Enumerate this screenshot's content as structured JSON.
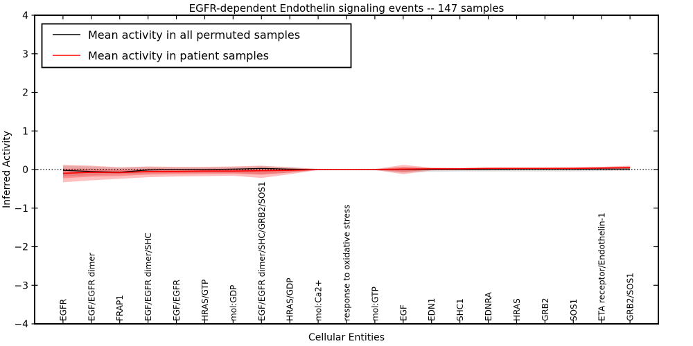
{
  "chart_data": {
    "type": "line",
    "title": "EGFR-dependent Endothelin signaling events -- 147 samples",
    "xlabel": "Cellular Entities",
    "ylabel": "Inferred Activity",
    "ylim": [
      -4,
      4
    ],
    "yticks": [
      4,
      3,
      2,
      1,
      0,
      -1,
      -2,
      -3,
      -4
    ],
    "grid": false,
    "legend_position": "upper left",
    "background_color": "#ffffff",
    "axis_color": "#000000",
    "zero_line": {
      "y": 0,
      "style": "dotted",
      "color": "#000000"
    },
    "categories": [
      "EGFR",
      "EGF/EGFR dimer",
      "FRAP1",
      "EGF/EGFR dimer/SHC",
      "EGF/EGFR",
      "HRAS/GTP",
      "mol:GDP",
      "EGF/EGFR dimer/SHC/GRB2/SOS1",
      "HRAS/GDP",
      "mol:Ca2+",
      "response to oxidative stress",
      "mol:GTP",
      "EGF",
      "EDN1",
      "SHC1",
      "EDNRA",
      "HRAS",
      "GRB2",
      "SOS1",
      "ETA receptor/Endothelin-1",
      "GRB2/SOS1"
    ],
    "series": [
      {
        "name": "Mean activity in all permuted samples",
        "color": "#000000",
        "line_width": 1.2,
        "band_color": "rgba(0,0,0,0.12)",
        "values": [
          -0.02,
          -0.05,
          -0.07,
          -0.01,
          0.0,
          0.0,
          0.01,
          0.03,
          0.01,
          0.0,
          0.0,
          0.0,
          0.0,
          0.0,
          0.0,
          0.0,
          0.01,
          0.01,
          0.01,
          0.01,
          0.01
        ],
        "band_upper": [
          0.1,
          0.08,
          0.05,
          0.07,
          0.06,
          0.06,
          0.07,
          0.09,
          0.06,
          0.02,
          0.01,
          0.02,
          0.06,
          0.04,
          0.04,
          0.04,
          0.04,
          0.04,
          0.04,
          0.04,
          0.05
        ],
        "band_lower": [
          -0.18,
          -0.15,
          -0.12,
          -0.1,
          -0.09,
          -0.09,
          -0.09,
          -0.12,
          -0.08,
          -0.02,
          -0.01,
          -0.02,
          -0.08,
          -0.06,
          -0.05,
          -0.05,
          -0.05,
          -0.05,
          -0.05,
          -0.04,
          -0.03
        ]
      },
      {
        "name": "Mean activity in patient samples",
        "color": "#ff0000",
        "line_width": 1.6,
        "band_color": "rgba(255,0,0,0.25)",
        "inner_band_scale": 0.55,
        "values": [
          -0.1,
          -0.07,
          -0.08,
          -0.05,
          -0.05,
          -0.04,
          -0.04,
          -0.03,
          -0.02,
          0.0,
          0.0,
          0.0,
          0.01,
          0.02,
          0.02,
          0.03,
          0.03,
          0.03,
          0.03,
          0.04,
          0.05
        ],
        "band_upper": [
          0.12,
          0.1,
          0.06,
          0.08,
          0.07,
          0.07,
          0.08,
          0.1,
          0.06,
          0.01,
          0.01,
          0.01,
          0.12,
          0.05,
          0.04,
          0.05,
          0.05,
          0.05,
          0.06,
          0.07,
          0.1
        ],
        "band_lower": [
          -0.33,
          -0.28,
          -0.24,
          -0.2,
          -0.18,
          -0.17,
          -0.16,
          -0.22,
          -0.12,
          -0.01,
          -0.01,
          -0.01,
          -0.12,
          -0.02,
          -0.01,
          -0.01,
          -0.01,
          -0.01,
          -0.01,
          0.0,
          0.01
        ]
      }
    ],
    "legend": {
      "entries": [
        {
          "label": "Mean activity in all permuted samples",
          "color": "#000000"
        },
        {
          "label": "Mean activity in patient samples",
          "color": "#ff0000"
        }
      ]
    }
  }
}
